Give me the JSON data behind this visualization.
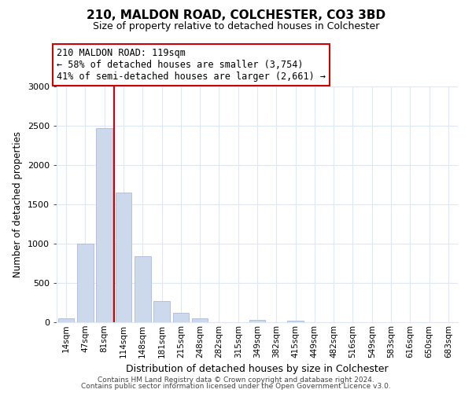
{
  "title": "210, MALDON ROAD, COLCHESTER, CO3 3BD",
  "subtitle": "Size of property relative to detached houses in Colchester",
  "xlabel": "Distribution of detached houses by size in Colchester",
  "ylabel": "Number of detached properties",
  "bar_labels": [
    "14sqm",
    "47sqm",
    "81sqm",
    "114sqm",
    "148sqm",
    "181sqm",
    "215sqm",
    "248sqm",
    "282sqm",
    "315sqm",
    "349sqm",
    "382sqm",
    "415sqm",
    "449sqm",
    "482sqm",
    "516sqm",
    "549sqm",
    "583sqm",
    "616sqm",
    "650sqm",
    "683sqm"
  ],
  "bar_values": [
    55,
    1000,
    2470,
    1650,
    840,
    270,
    120,
    55,
    5,
    5,
    35,
    5,
    18,
    0,
    0,
    0,
    0,
    0,
    0,
    0,
    0
  ],
  "bar_color": "#ccd9ec",
  "bar_edge_color": "#aabbdd",
  "vline_color": "#cc0000",
  "vline_index": 2.5,
  "ylim": [
    0,
    3000
  ],
  "yticks": [
    0,
    500,
    1000,
    1500,
    2000,
    2500,
    3000
  ],
  "annotation_line1": "210 MALDON ROAD: 119sqm",
  "annotation_line2": "← 58% of detached houses are smaller (3,754)",
  "annotation_line3": "41% of semi-detached houses are larger (2,661) →",
  "annotation_box_color": "#ffffff",
  "annotation_box_edge": "#cc0000",
  "footer_line1": "Contains HM Land Registry data © Crown copyright and database right 2024.",
  "footer_line2": "Contains public sector information licensed under the Open Government Licence v3.0.",
  "bg_color": "#ffffff",
  "grid_color": "#dce8f5"
}
